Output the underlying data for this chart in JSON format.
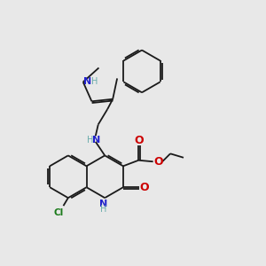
{
  "background_color": "#e8e8e8",
  "bond_color": "#1a1a1a",
  "N_color": "#2222cc",
  "O_color": "#cc0000",
  "Cl_color": "#1a7a1a",
  "H_color": "#6aacac",
  "figsize": [
    3.0,
    3.0
  ],
  "dpi": 100,
  "xlim": [
    0,
    10
  ],
  "ylim": [
    0,
    10
  ],
  "lw": 1.3,
  "off": 0.07
}
